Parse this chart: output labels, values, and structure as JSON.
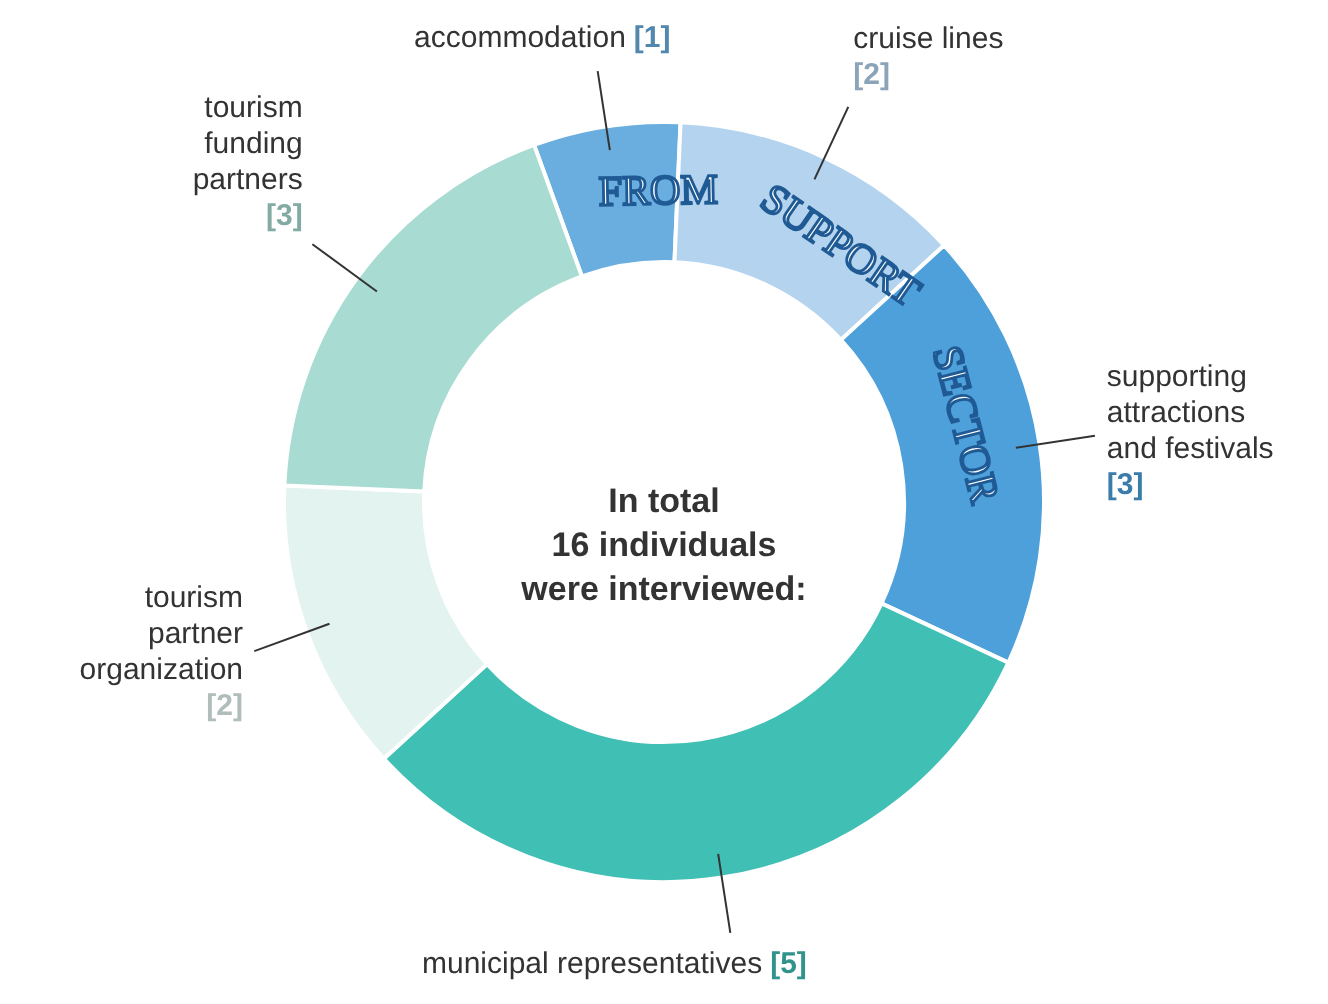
{
  "chart_data": {
    "type": "donut",
    "categories": [
      "accommodation",
      "cruise lines",
      "supporting attractions and festivals",
      "municipal representatives",
      "tourism partner organization",
      "tourism funding partners"
    ],
    "values": [
      1,
      2,
      3,
      5,
      2,
      3
    ],
    "value_labels": [
      "[1]",
      "[2]",
      "[3]",
      "[5]",
      "[2]",
      "[3]"
    ],
    "colors": [
      "#6aaee0",
      "#b3d3ee",
      "#4ea0db",
      "#40bfb4",
      "#e3f3f0",
      "#a8dcd3"
    ],
    "annotations": [
      "In total\n16 individuals\nwere interviewed:",
      "FROM SUPPORT SECTOR"
    ]
  }
}
